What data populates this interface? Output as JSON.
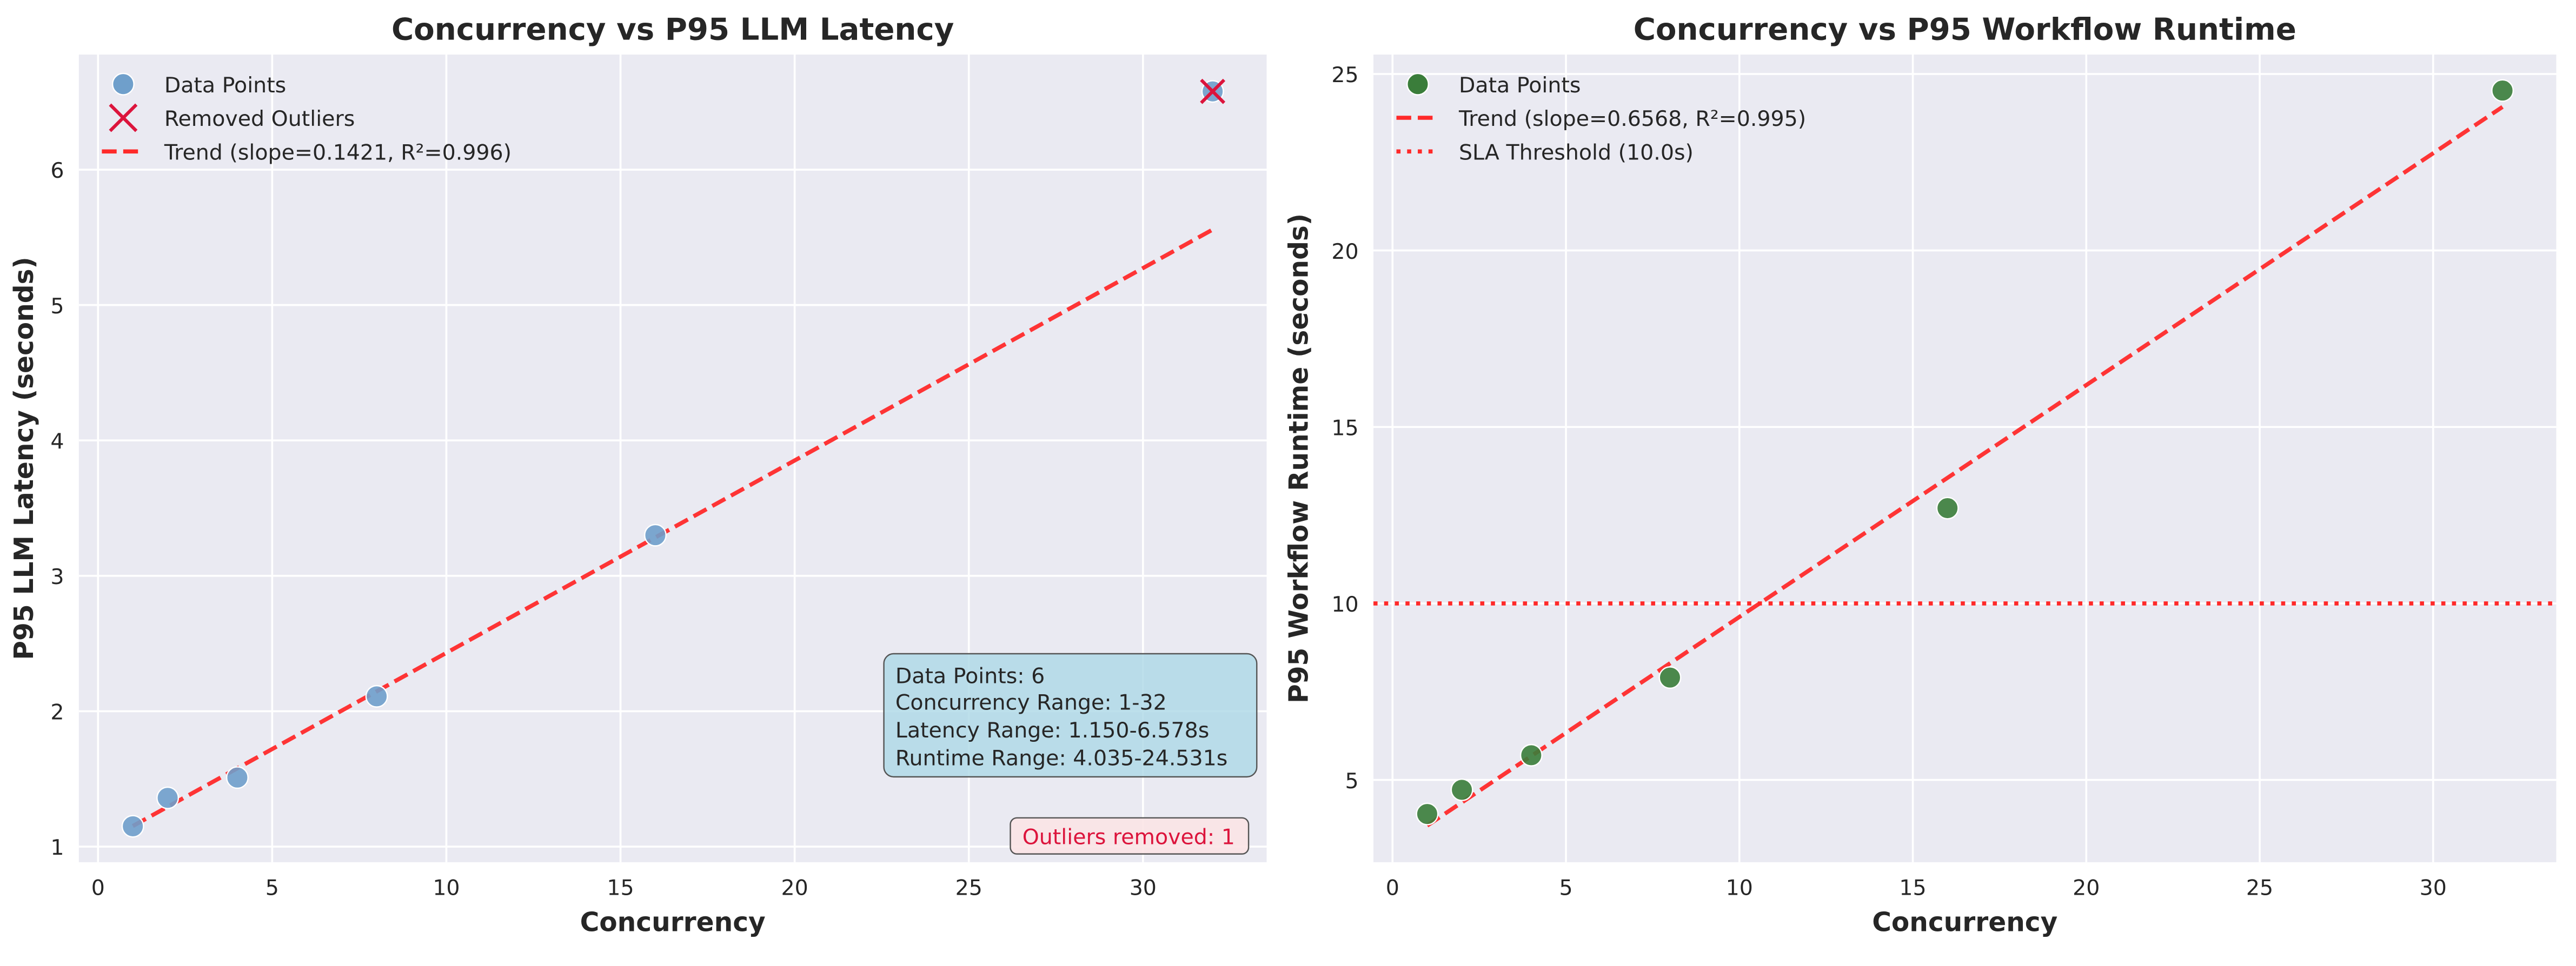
{
  "colors": {
    "background": "#eaeaf2",
    "grid": "#ffffff",
    "latency_points": "#6f9fcb",
    "runtime_points": "#3a7d3a",
    "trend": "#ff2a2a",
    "sla": "#ff2a2a",
    "outlier_x": "#dc143c",
    "info_box": "#add8e6",
    "outlier_box": "#fbe4e6",
    "outlier_text": "#dc143c"
  },
  "chart_data": [
    {
      "type": "scatter",
      "title": "Concurrency vs P95 LLM Latency",
      "xlabel": "Concurrency",
      "ylabel": "P95 LLM Latency (seconds)",
      "xlim": [
        -0.55,
        33.55
      ],
      "ylim": [
        0.885,
        6.85
      ],
      "xticks": [
        0,
        5,
        10,
        15,
        20,
        25,
        30
      ],
      "yticks": [
        1,
        2,
        3,
        4,
        5,
        6
      ],
      "grid": true,
      "legend_position": "top-left",
      "series": [
        {
          "name": "Data Points",
          "kind": "scatter",
          "x": [
            1,
            2,
            4,
            8,
            16
          ],
          "y": [
            1.15,
            1.36,
            1.51,
            2.11,
            3.3
          ]
        },
        {
          "name": "Removed Outliers",
          "kind": "x-marker",
          "x": [
            32
          ],
          "y": [
            6.578
          ]
        },
        {
          "name": "Trend (slope=0.1421, R²=0.996)",
          "kind": "dashed-line",
          "slope": 0.1421,
          "intercept": 1.01,
          "x_range": [
            1,
            32
          ]
        }
      ],
      "removed_outlier_points": [
        {
          "x": 32,
          "y": 6.578
        }
      ],
      "annotations": {
        "outliers": "Outliers removed: 1",
        "info_lines": [
          "Data Points: 6",
          "Concurrency Range: 1-32",
          "Latency Range: 1.150-6.578s",
          "Runtime Range: 4.035-24.531s"
        ]
      }
    },
    {
      "type": "scatter",
      "title": "Concurrency vs P95 Workflow Runtime",
      "xlabel": "Concurrency",
      "ylabel": "P95 Workflow Runtime (seconds)",
      "xlim": [
        -0.55,
        33.55
      ],
      "ylim": [
        2.67,
        25.55
      ],
      "xticks": [
        0,
        5,
        10,
        15,
        20,
        25,
        30
      ],
      "yticks": [
        5,
        10,
        15,
        20,
        25
      ],
      "grid": true,
      "legend_position": "top-left",
      "series": [
        {
          "name": "Data Points",
          "kind": "scatter",
          "x": [
            1,
            2,
            4,
            8,
            16,
            32
          ],
          "y": [
            4.035,
            4.72,
            5.7,
            7.9,
            12.7,
            24.531
          ]
        },
        {
          "name": "Trend (slope=0.6568, R²=0.995)",
          "kind": "dashed-line",
          "slope": 0.6568,
          "intercept": 3.05,
          "x_range": [
            1,
            32
          ]
        },
        {
          "name": "SLA Threshold (10.0s)",
          "kind": "dotted-hline",
          "y": 10.0
        }
      ]
    }
  ]
}
